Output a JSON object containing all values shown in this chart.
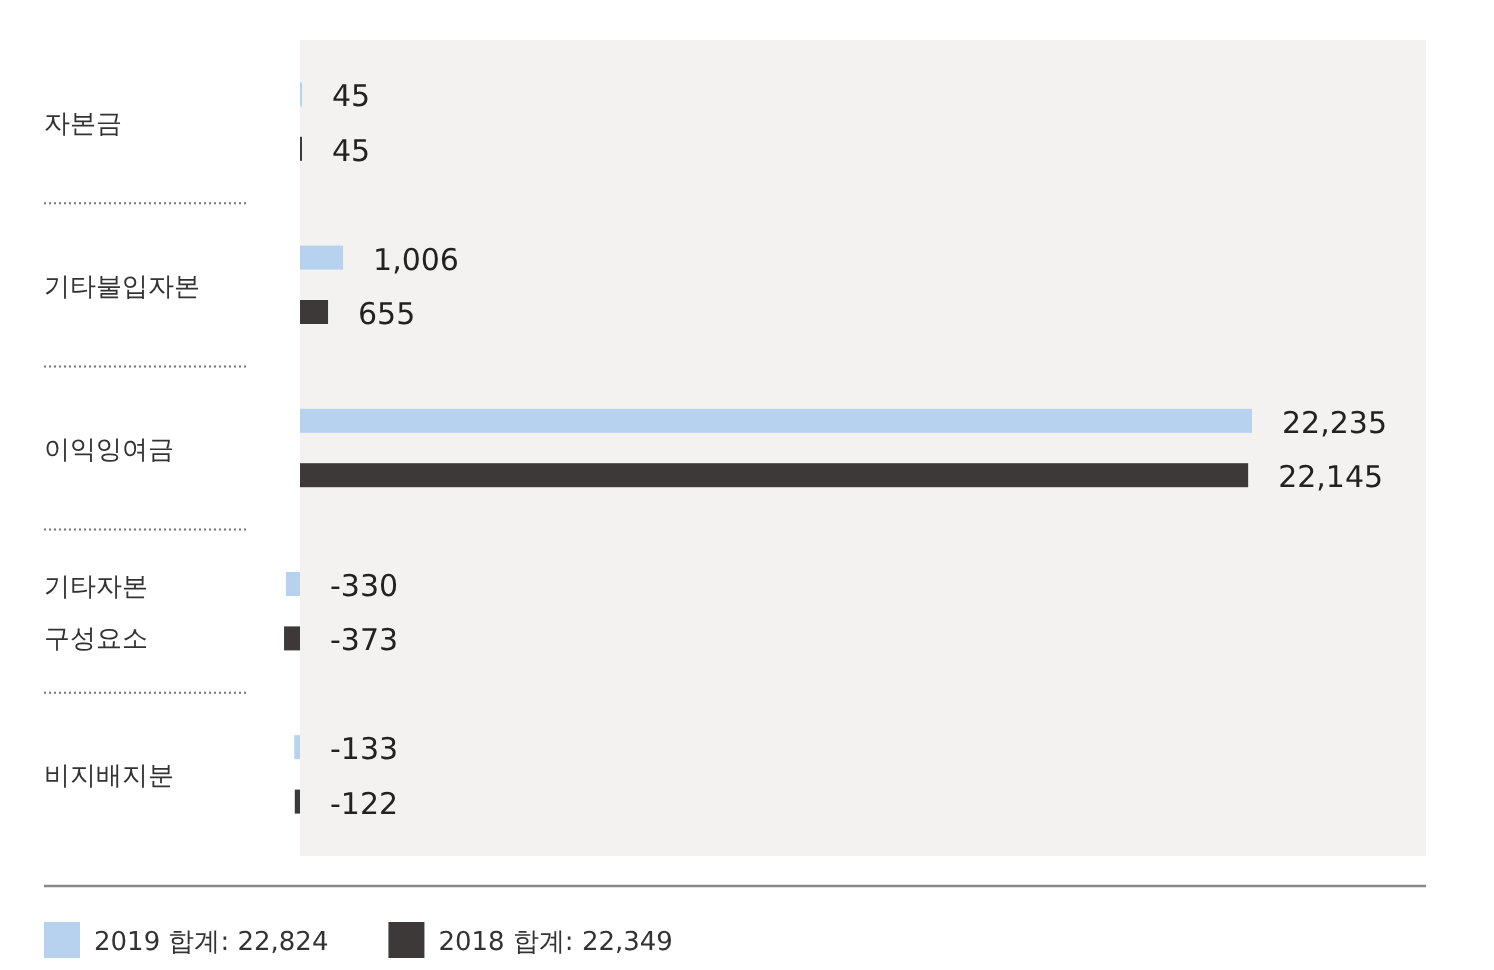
{
  "chart_data": {
    "type": "bar",
    "orientation": "horizontal",
    "categories": [
      "자본금",
      "기타불입자본",
      "이익잉여금",
      "기타자본 구성요소",
      "비지배지분"
    ],
    "series": [
      {
        "name": "2019 합계: 22,824",
        "color": "#b7d2ee",
        "values": [
          45,
          1006,
          22235,
          -330,
          -133
        ],
        "value_labels": [
          "45",
          "1,006",
          "22,235",
          "-330",
          "-133"
        ]
      },
      {
        "name": "2018 합계: 22,349",
        "color": "#3d3939",
        "values": [
          45,
          655,
          22145,
          -373,
          -122
        ],
        "value_labels": [
          "45",
          "655",
          "22,145",
          "-373",
          "-122"
        ]
      }
    ],
    "legend": "bottom left"
  }
}
